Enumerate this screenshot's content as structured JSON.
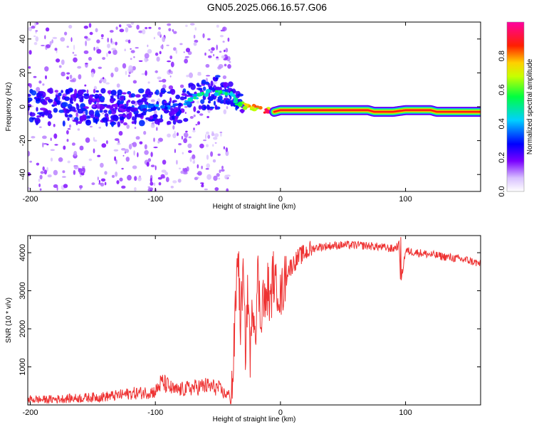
{
  "title": "GN05.2025.066.16.57.G06",
  "chart_data": [
    {
      "type": "heatmap",
      "name": "spectrogram",
      "xlabel": "Height of straight line (km)",
      "ylabel": "Frequency (Hz)",
      "xlim": [
        -202,
        160
      ],
      "ylim": [
        -50,
        50
      ],
      "xticks": [
        -200,
        -100,
        0,
        100
      ],
      "xtick_labels": [
        "-200",
        "-100",
        "0",
        "100"
      ],
      "yticks": [
        -40,
        -20,
        0,
        20,
        40
      ],
      "ytick_labels": [
        "-40",
        "-20",
        "0",
        "20",
        "40"
      ],
      "ridge": {
        "x": [
          -200,
          -150,
          -120,
          -100,
          -80,
          -70,
          -60,
          -50,
          -40,
          -35,
          -30,
          -25,
          -20,
          -15,
          -10,
          -5,
          0,
          20,
          40,
          60,
          70,
          75,
          90,
          100,
          110,
          120,
          125,
          140,
          160
        ],
        "freq": [
          0,
          0,
          -1,
          0,
          0,
          5,
          8,
          8,
          8,
          3,
          1,
          0,
          -1,
          -2,
          -2,
          -3,
          -2,
          -2,
          -2,
          -2,
          -2,
          -3,
          -3,
          -2,
          -2,
          -2,
          -3,
          -3,
          -3
        ],
        "amplitude": [
          0.15,
          0.2,
          0.25,
          0.4,
          0.4,
          0.5,
          0.55,
          0.55,
          0.5,
          0.6,
          0.8,
          0.85,
          0.9,
          0.9,
          0.95,
          0.95,
          0.95,
          0.95,
          0.95,
          0.95,
          0.95,
          0.95,
          0.95,
          0.95,
          0.95,
          0.95,
          0.95,
          0.95,
          0.95
        ]
      },
      "colorbar": {
        "label": "Normalized spectral amplitude",
        "range": [
          0,
          1
        ],
        "ticks": [
          0.0,
          0.2,
          0.4,
          0.6,
          0.8
        ],
        "tick_labels": [
          "0.0",
          "0.2",
          "0.4",
          "0.6",
          "0.8"
        ],
        "colormap": [
          "#ffffff",
          "#8000ff",
          "#0000ff",
          "#00ffff",
          "#00ff00",
          "#ffff00",
          "#ff0000",
          "#ff00ff"
        ]
      }
    },
    {
      "type": "line",
      "name": "snr",
      "xlabel": "Height of straight line (km)",
      "ylabel": "SNR (10 * v/v)",
      "xlim": [
        -202,
        160
      ],
      "ylim": [
        0,
        4450
      ],
      "xticks": [
        -200,
        -100,
        0,
        100
      ],
      "xtick_labels": [
        "-200",
        "-100",
        "0",
        "100"
      ],
      "yticks": [
        1000,
        2000,
        3000,
        4000
      ],
      "ytick_labels": [
        "1000",
        "2000",
        "3000",
        "4000"
      ],
      "color": "#ee3333",
      "series": [
        {
          "name": "SNR",
          "x": [
            -202,
            -190,
            -180,
            -170,
            -160,
            -150,
            -140,
            -130,
            -120,
            -110,
            -100,
            -95,
            -90,
            -85,
            -80,
            -70,
            -60,
            -50,
            -45,
            -40,
            -38,
            -36,
            -35,
            -34,
            -32,
            -30,
            -28,
            -26,
            -24,
            -22,
            -20,
            -18,
            -16,
            -14,
            -12,
            -10,
            -8,
            -6,
            -4,
            -2,
            0,
            5,
            10,
            15,
            20,
            25,
            30,
            40,
            50,
            60,
            70,
            80,
            90,
            95,
            96,
            100,
            110,
            120,
            130,
            140,
            150,
            160
          ],
          "y": [
            150,
            140,
            150,
            170,
            180,
            200,
            220,
            250,
            300,
            320,
            350,
            600,
            500,
            380,
            400,
            450,
            500,
            450,
            300,
            250,
            700,
            2500,
            3200,
            4300,
            2000,
            3500,
            1500,
            3000,
            1200,
            2800,
            2000,
            3500,
            2200,
            3000,
            2500,
            3200,
            2500,
            3500,
            3000,
            3200,
            2800,
            3500,
            3700,
            3900,
            4000,
            4100,
            4150,
            4180,
            4200,
            4200,
            4180,
            4150,
            4100,
            4200,
            3200,
            4050,
            4000,
            3950,
            3900,
            3850,
            3800,
            3700
          ]
        }
      ]
    }
  ]
}
